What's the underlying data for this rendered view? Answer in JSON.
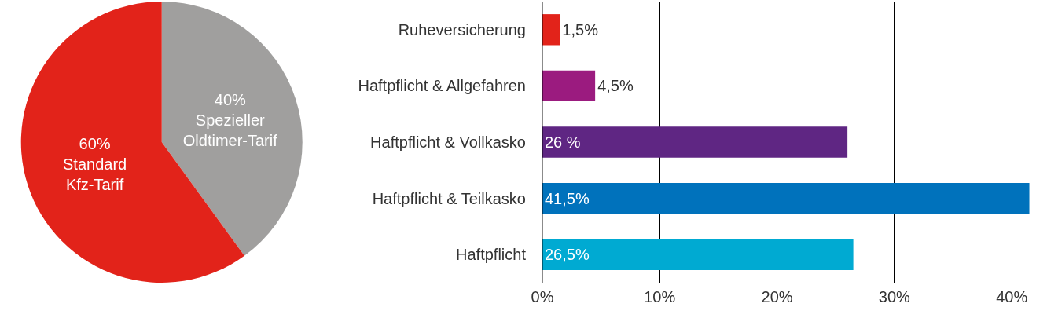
{
  "chart_data": [
    {
      "type": "pie",
      "categories": [
        "Spezieller Oldtimer-Tarif",
        "Standard Kfz-Tarif"
      ],
      "values": [
        40,
        60
      ],
      "value_labels": [
        "40%",
        "60%"
      ],
      "colors": [
        "#a09f9e",
        "#e2231a"
      ]
    },
    {
      "type": "bar",
      "orientation": "horizontal",
      "categories": [
        "Ruheversicherung",
        "Haftpflicht & Allgefahren",
        "Haftpflicht & Vollkasko",
        "Haftpflicht & Teilkasko",
        "Haftpflicht"
      ],
      "values": [
        1.5,
        4.5,
        26,
        41.5,
        26.5
      ],
      "colors": [
        "#e2231a",
        "#9b1b7f",
        "#5f2683",
        "#0072bc",
        "#00aad2"
      ],
      "value_labels": [
        "1,5%",
        "4,5%",
        "26 %",
        "41,5%",
        "26,5%"
      ],
      "xlim": [
        0,
        42
      ],
      "xticks": [
        {
          "value": 0,
          "label": "0%"
        },
        {
          "value": 10,
          "label": "10%"
        },
        {
          "value": 20,
          "label": "20%"
        },
        {
          "value": 30,
          "label": "30%"
        },
        {
          "value": 40,
          "label": "40%"
        }
      ],
      "grid": "x"
    }
  ]
}
